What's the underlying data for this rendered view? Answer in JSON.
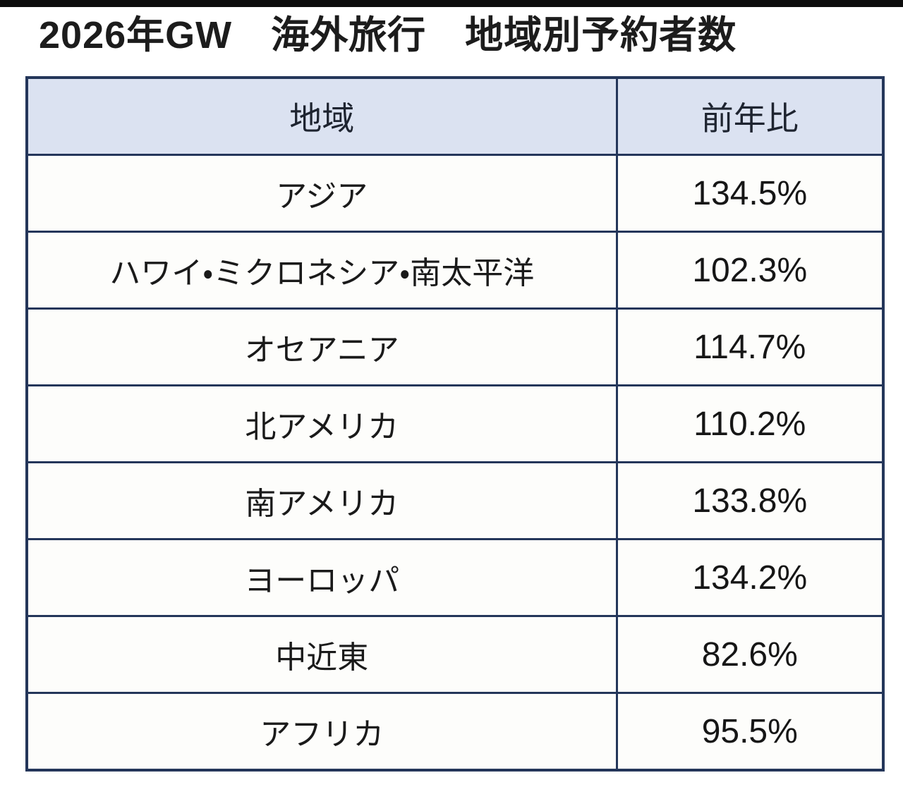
{
  "page": {
    "title": "2026年GW　海外旅行　地域別予約者数"
  },
  "colors": {
    "border": "#24365a",
    "header_bg": "#dbe2f1",
    "row_bg": "#fdfdfb",
    "top_bar": "#0d0d0d",
    "text": "#1a1a1a"
  },
  "table": {
    "columns": [
      {
        "label": "地域"
      },
      {
        "label": "前年比"
      }
    ],
    "rows": [
      {
        "region": "アジア",
        "yoy": "134.5%"
      },
      {
        "region": "ハワイ・ミクロネシア・南太平洋",
        "yoy": "102.3%"
      },
      {
        "region": "オセアニア",
        "yoy": "114.7%"
      },
      {
        "region": "北アメリカ",
        "yoy": "110.2%"
      },
      {
        "region": "南アメリカ",
        "yoy": "133.8%"
      },
      {
        "region": "ヨーロッパ",
        "yoy": "134.2%"
      },
      {
        "region": "中近東",
        "yoy": "82.6%"
      },
      {
        "region": "アフリカ",
        "yoy": "95.5%"
      }
    ]
  }
}
